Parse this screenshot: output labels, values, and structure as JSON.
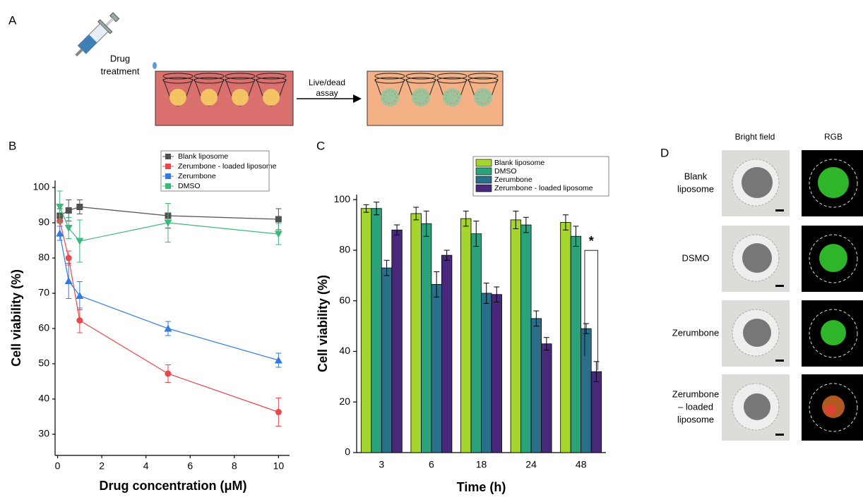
{
  "figure": {
    "panel_labels": [
      "A",
      "B",
      "C",
      "D"
    ],
    "treatment_label": [
      "Drug",
      "treatment"
    ],
    "assay_label": [
      "Live/dead",
      "assay"
    ],
    "imaging": {
      "columns": [
        "Bright field",
        "RGB"
      ],
      "rows": [
        [
          "Blank",
          "liposome"
        ],
        [
          "DSMO"
        ],
        [
          "Zerumbone"
        ],
        [
          "Zerumbone",
          "– loaded",
          "liposome"
        ]
      ]
    }
  },
  "chart_data": [
    {
      "type": "line",
      "x_label": "Drug concentration (μM)",
      "y_label": "Cell viability (%)",
      "x": [
        0.1,
        0.5,
        1,
        5,
        10
      ],
      "xlim": [
        -0.05,
        10.5
      ],
      "xticks": [
        0,
        2,
        4,
        6,
        8,
        10
      ],
      "ylim": [
        24,
        102
      ],
      "yticks": [
        30,
        40,
        50,
        60,
        70,
        80,
        90,
        100
      ],
      "series": [
        {
          "name": "Blank liposome",
          "color": "#505050",
          "marker": "square",
          "values": [
            92,
            93.5,
            94.5,
            92,
            91
          ],
          "errors": [
            2,
            3,
            2,
            3.5,
            3
          ]
        },
        {
          "name": "Zerumbone - loaded liposome",
          "color": "#e8474b",
          "marker": "circle",
          "values": [
            90.5,
            80,
            62.3,
            47.2,
            36.3
          ],
          "errors": [
            1.5,
            2,
            3.5,
            2.5,
            4
          ]
        },
        {
          "name": "Zerumbone",
          "color": "#2f7be0",
          "marker": "triangle-up",
          "values": [
            87,
            73.5,
            69.3,
            60,
            51
          ],
          "errors": [
            2,
            5,
            4,
            2,
            2
          ]
        },
        {
          "name": "DMSO",
          "color": "#3cb878",
          "marker": "triangle-down",
          "values": [
            94.5,
            88.5,
            84.8,
            90,
            86.8
          ],
          "errors": [
            4.5,
            3,
            6,
            5.5,
            3
          ]
        }
      ]
    },
    {
      "type": "bar",
      "x_label": "Time (h)",
      "y_label": "Cell viability (%)",
      "categories": [
        "3",
        "6",
        "18",
        "24",
        "48"
      ],
      "ylim": [
        0,
        102
      ],
      "yticks": [
        0,
        20,
        40,
        60,
        80,
        100
      ],
      "annotation": "*",
      "series": [
        {
          "name": "Blank liposome",
          "color": "#a6d52e",
          "values": [
            96.5,
            94.5,
            92.5,
            92,
            91
          ],
          "errors": [
            1.5,
            2.5,
            3,
            3.5,
            3
          ]
        },
        {
          "name": "DMSO",
          "color": "#2aa37a",
          "values": [
            96.5,
            90.5,
            86.5,
            90,
            85.5
          ],
          "errors": [
            2.5,
            5,
            5,
            3,
            4
          ]
        },
        {
          "name": "Zerumbone",
          "color": "#2a6f8a",
          "values": [
            73,
            66.5,
            63,
            53,
            49
          ],
          "errors": [
            3,
            5,
            4,
            3,
            2
          ]
        },
        {
          "name": "Zerumbone - loaded liposome",
          "color": "#48287a",
          "values": [
            88,
            78,
            62.5,
            43,
            32
          ],
          "errors": [
            2,
            2,
            3,
            2.5,
            4
          ]
        }
      ]
    }
  ]
}
